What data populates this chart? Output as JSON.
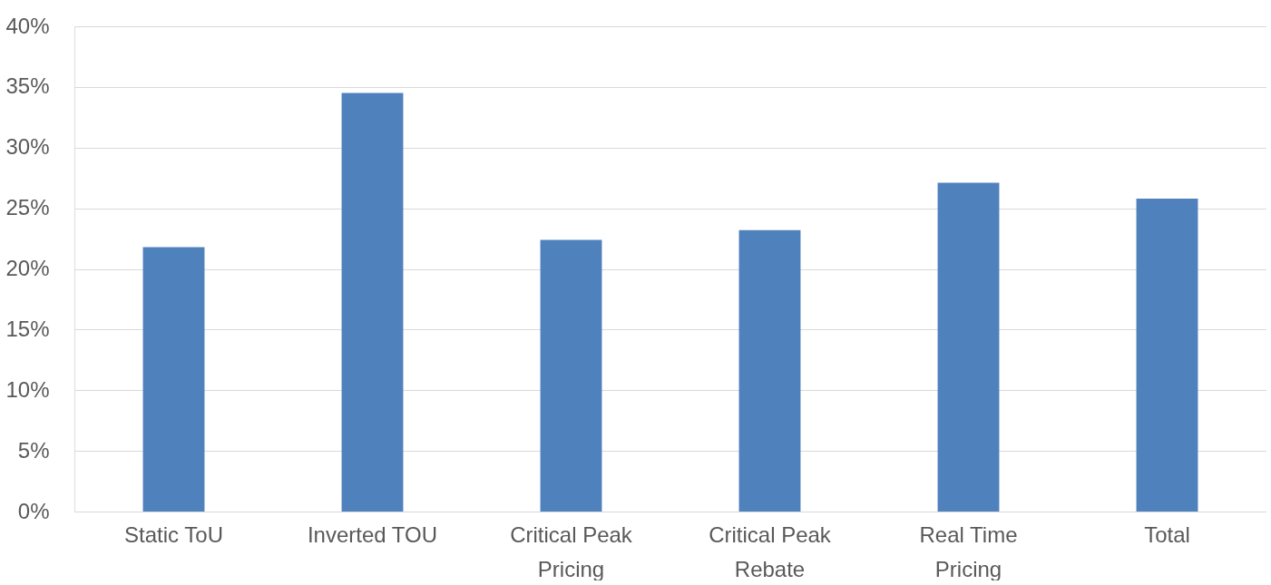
{
  "chart_data": {
    "type": "bar",
    "categories": [
      "Static ToU",
      "Inverted TOU",
      "Critical Peak Pricing",
      "Critical Peak Rebate",
      "Real Time Pricing",
      "Total"
    ],
    "values": [
      21.8,
      34.5,
      22.4,
      23.2,
      27.1,
      25.8
    ],
    "color": "#4f81bd",
    "ylim": [
      0,
      40
    ],
    "yticks": [
      {
        "value": 0,
        "label": "0%"
      },
      {
        "value": 5,
        "label": "5%"
      },
      {
        "value": 10,
        "label": "10%"
      },
      {
        "value": 15,
        "label": "15%"
      },
      {
        "value": 20,
        "label": "20%"
      },
      {
        "value": 25,
        "label": "25%"
      },
      {
        "value": 30,
        "label": "30%"
      },
      {
        "value": 35,
        "label": "35%"
      },
      {
        "value": 40,
        "label": "40%"
      }
    ],
    "grid": "y"
  }
}
